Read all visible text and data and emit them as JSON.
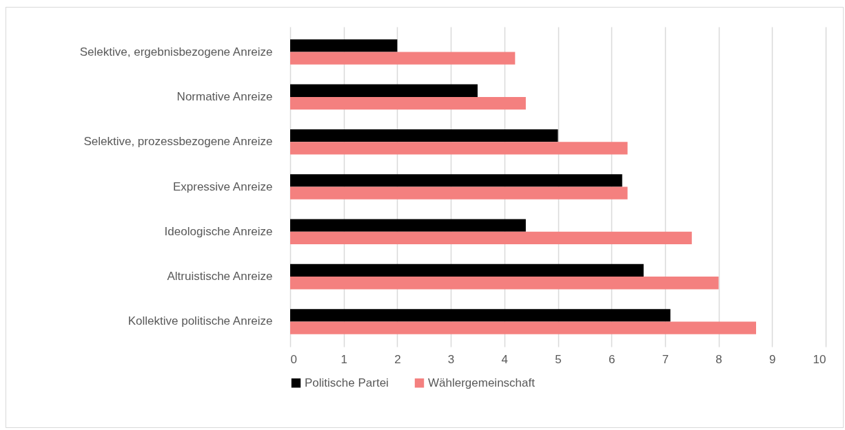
{
  "chart_data": {
    "type": "bar",
    "orientation": "horizontal",
    "categories": [
      "Selektive, ergebnisbezogene Anreize",
      "Normative Anreize",
      "Selektive, prozessbezogene Anreize",
      "Expressive Anreize",
      "Ideologische Anreize",
      "Altruistische Anreize",
      "Kollektive politische Anreize"
    ],
    "series": [
      {
        "name": "Politische Partei",
        "color": "#000000",
        "values": [
          2.0,
          3.5,
          5.0,
          6.2,
          4.4,
          6.6,
          7.1
        ]
      },
      {
        "name": "Wählergemeinschaft",
        "color": "#f4807f",
        "values": [
          4.2,
          4.4,
          6.3,
          6.3,
          7.5,
          8.0,
          8.7
        ]
      }
    ],
    "xlim": [
      0,
      10
    ],
    "xticks": [
      0,
      1,
      2,
      3,
      4,
      5,
      6,
      7,
      8,
      9,
      10
    ],
    "grid": "x",
    "legend": "bottom"
  }
}
